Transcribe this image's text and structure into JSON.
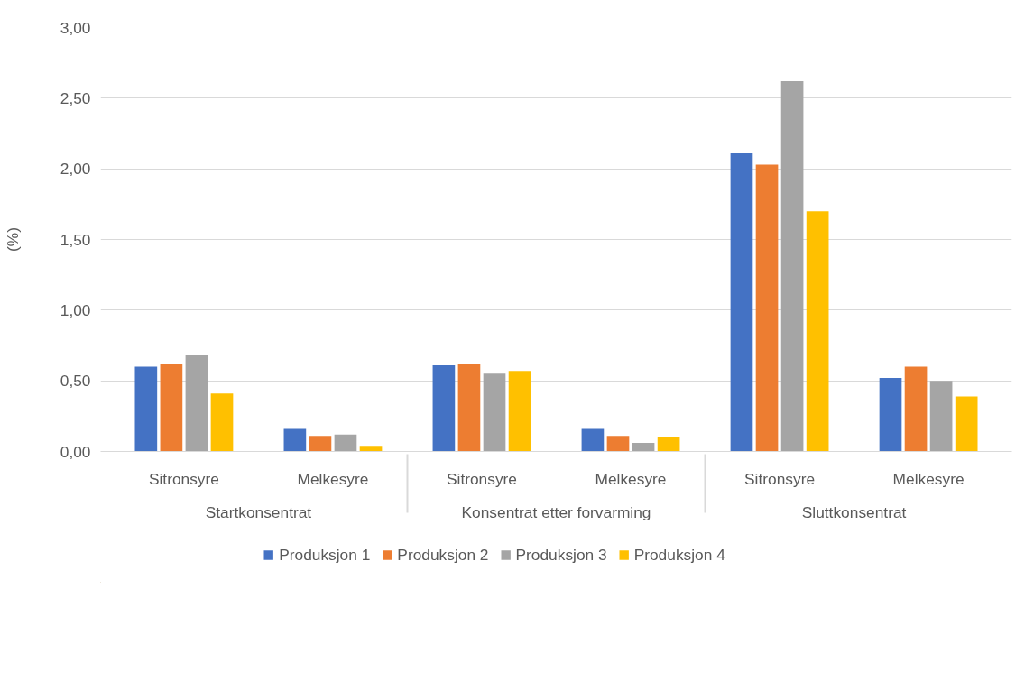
{
  "chart_data": {
    "type": "bar",
    "ylabel": "(%)",
    "categories": [
      "Sitronsyre",
      "Melkesyre",
      "Sitronsyre",
      "Melkesyre",
      "Sitronsyre",
      "Melkesyre"
    ],
    "annotations": [
      "Startkonsentrat",
      "Konsentrat etter forvarming",
      "Sluttkonsentrat"
    ],
    "series": [
      {
        "name": "Produksjon 1",
        "color": "#4472c4",
        "values": [
          0.6,
          0.16,
          0.61,
          0.16,
          2.11,
          0.52
        ]
      },
      {
        "name": "Produksjon 2",
        "color": "#ed7d31",
        "values": [
          0.62,
          0.11,
          0.62,
          0.11,
          2.03,
          0.6
        ]
      },
      {
        "name": "Produksjon 3",
        "color": "#a5a5a5",
        "values": [
          0.68,
          0.12,
          0.55,
          0.06,
          2.62,
          0.5
        ]
      },
      {
        "name": "Produksjon 4",
        "color": "#ffc000",
        "values": [
          0.41,
          0.04,
          0.57,
          0.1,
          1.7,
          0.39
        ]
      }
    ],
    "ylim": [
      0,
      3
    ],
    "yticks": [
      {
        "value": 0,
        "label": "0,00"
      },
      {
        "value": 0.5,
        "label": "0,50"
      },
      {
        "value": 1,
        "label": "1,00"
      },
      {
        "value": 1.5,
        "label": "1,50"
      },
      {
        "value": 2,
        "label": "2,00"
      },
      {
        "value": 2.5,
        "label": "2,50"
      },
      {
        "value": 3,
        "label": "3,00"
      }
    ],
    "grid": "y",
    "legend": "bottom"
  }
}
